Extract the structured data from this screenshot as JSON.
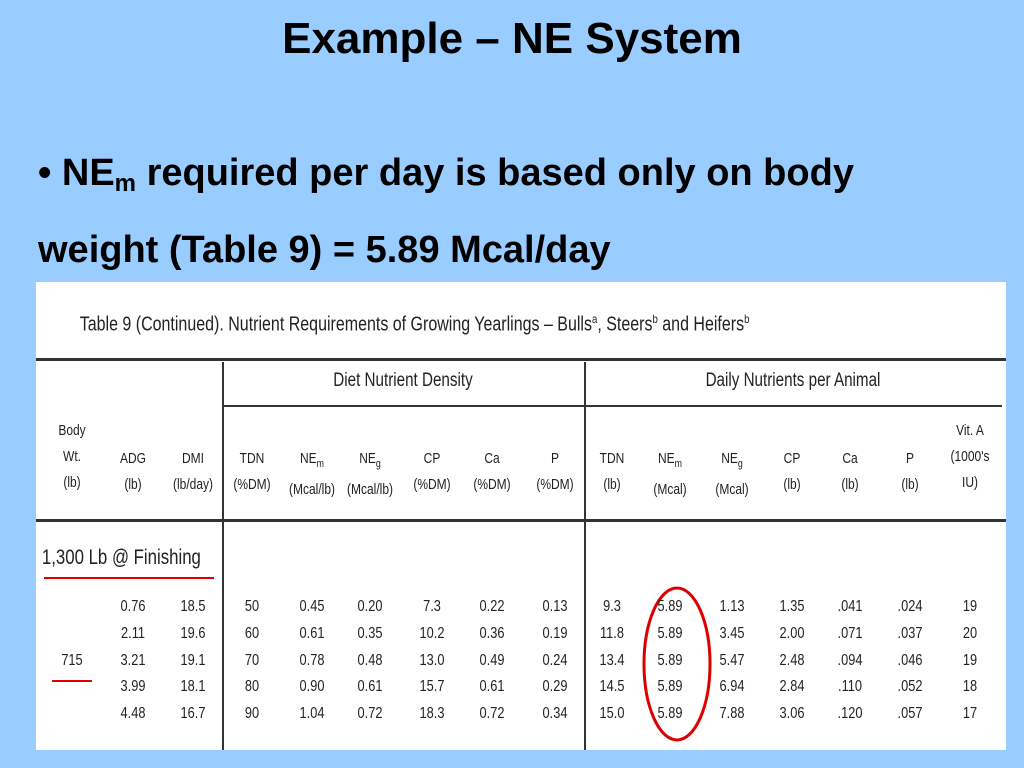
{
  "title": "Example – NE System",
  "bullet": {
    "name": "NE",
    "sub": "m",
    "text": " required per day is based only on body weight (Table 9) = 5.89 Mcal/day"
  },
  "table": {
    "caption": [
      {
        "text": "Table 9 (Continued). Nutrient Requirements of Growing Yearlings – Bulls"
      },
      {
        "sup": "a"
      },
      {
        "text": ", Steers"
      },
      {
        "sup": "b"
      },
      {
        "text": " and Heifers"
      },
      {
        "sup": "b"
      }
    ],
    "groups": [
      "Diet Nutrient Density",
      "Daily Nutrients per Animal"
    ],
    "columns": [
      {
        "label": "Body Wt.",
        "unit": "(lb)"
      },
      {
        "label": "ADG",
        "unit": "(lb)"
      },
      {
        "label": "DMI",
        "unit": "(lb/day)"
      },
      {
        "label": "TDN",
        "unit": "(%DM)"
      },
      {
        "label": "NE",
        "sub": "m",
        "unit": "(Mcal/lb)"
      },
      {
        "label": "NE",
        "sub": "g",
        "unit": "(Mcal/lb)"
      },
      {
        "label": "CP",
        "unit": "(%DM)"
      },
      {
        "label": "Ca",
        "unit": "(%DM)"
      },
      {
        "label": "P",
        "unit": "(%DM)"
      },
      {
        "label": "TDN",
        "unit": "(lb)"
      },
      {
        "label": "NE",
        "sub": "m",
        "unit": "(Mcal)"
      },
      {
        "label": "NE",
        "sub": "g",
        "unit": "(Mcal)"
      },
      {
        "label": "CP",
        "unit": "(lb)"
      },
      {
        "label": "Ca",
        "unit": "(lb)"
      },
      {
        "label": "P",
        "unit": "(lb)"
      },
      {
        "label": "Vit. A",
        "unit": "(1000's IU)"
      }
    ],
    "section": "1,300 Lb @ Finishing",
    "rows": [
      [
        null,
        "0.76",
        "18.5",
        "50",
        "0.45",
        "0.20",
        "7.3",
        "0.22",
        "0.13",
        "9.3",
        "5.89",
        "1.13",
        "1.35",
        ".041",
        ".024",
        "19"
      ],
      [
        null,
        "2.11",
        "19.6",
        "60",
        "0.61",
        "0.35",
        "10.2",
        "0.36",
        "0.19",
        "11.8",
        "5.89",
        "3.45",
        "2.00",
        ".071",
        ".037",
        "20"
      ],
      [
        "715",
        "3.21",
        "19.1",
        "70",
        "0.78",
        "0.48",
        "13.0",
        "0.49",
        "0.24",
        "13.4",
        "5.89",
        "5.47",
        "2.48",
        ".094",
        ".046",
        "19"
      ],
      [
        null,
        "3.99",
        "18.1",
        "80",
        "0.90",
        "0.61",
        "15.7",
        "0.61",
        "0.29",
        "14.5",
        "5.89",
        "6.94",
        "2.84",
        ".110",
        ".052",
        "18"
      ],
      [
        null,
        "4.48",
        "16.7",
        "90",
        "1.04",
        "0.72",
        "18.3",
        "0.72",
        "0.34",
        "15.0",
        "5.89",
        "7.88",
        "3.06",
        ".120",
        ".057",
        "17"
      ]
    ]
  }
}
